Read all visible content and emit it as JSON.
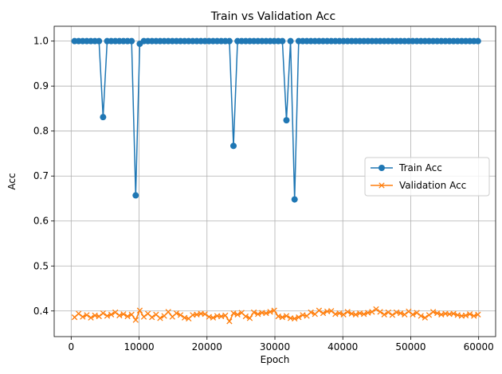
{
  "chart_data": {
    "type": "line",
    "title": "Train vs Validation Acc",
    "xlabel": "Epoch",
    "ylabel": "Acc",
    "xlim": [
      -2500,
      62500
    ],
    "ylim": [
      0.343,
      1.033
    ],
    "xticks": [
      0,
      10000,
      20000,
      30000,
      40000,
      50000,
      60000
    ],
    "yticks": [
      0.4,
      0.5,
      0.6,
      0.7,
      0.8,
      0.9,
      1.0
    ],
    "xtick_labels": [
      "0",
      "10000",
      "20000",
      "30000",
      "40000",
      "50000",
      "60000"
    ],
    "ytick_labels": [
      "0.4",
      "0.5",
      "0.6",
      "0.7",
      "0.8",
      "0.9",
      "1.0"
    ],
    "grid": true,
    "legend_position": "center-right",
    "x": [
      500,
      1100,
      1700,
      2300,
      2900,
      3500,
      4100,
      4700,
      5300,
      5900,
      6500,
      7100,
      7700,
      8300,
      8900,
      9500,
      10100,
      10700,
      11300,
      11900,
      12500,
      13100,
      13700,
      14300,
      14900,
      15500,
      16100,
      16700,
      17300,
      17900,
      18500,
      19100,
      19700,
      20300,
      20900,
      21500,
      22100,
      22700,
      23300,
      23900,
      24500,
      25100,
      25700,
      26300,
      26900,
      27500,
      28100,
      28700,
      29300,
      29900,
      30500,
      31100,
      31700,
      32300,
      32900,
      33500,
      34100,
      34700,
      35300,
      35900,
      36500,
      37100,
      37700,
      38300,
      38900,
      39500,
      40100,
      40700,
      41300,
      41900,
      42500,
      43100,
      43700,
      44300,
      44900,
      45500,
      46100,
      46700,
      47300,
      47900,
      48500,
      49100,
      49700,
      50300,
      50900,
      51500,
      52100,
      52700,
      53300,
      53900,
      54500,
      55100,
      55700,
      56300,
      56900,
      57500,
      58100,
      58700,
      59300,
      59900
    ],
    "series": [
      {
        "name": "Train Acc",
        "color": "#1f77b4",
        "marker": "circle",
        "values": [
          1.0,
          1.0,
          1.0,
          1.0,
          1.0,
          1.0,
          1.0,
          0.831,
          1.0,
          1.0,
          1.0,
          1.0,
          1.0,
          1.0,
          1.0,
          0.657,
          0.994,
          1.0,
          1.0,
          1.0,
          1.0,
          1.0,
          1.0,
          1.0,
          1.0,
          1.0,
          1.0,
          1.0,
          1.0,
          1.0,
          1.0,
          1.0,
          1.0,
          1.0,
          1.0,
          1.0,
          1.0,
          1.0,
          1.0,
          0.767,
          1.0,
          1.0,
          1.0,
          1.0,
          1.0,
          1.0,
          1.0,
          1.0,
          1.0,
          1.0,
          1.0,
          1.0,
          0.824,
          1.0,
          0.648,
          1.0,
          1.0,
          1.0,
          1.0,
          1.0,
          1.0,
          1.0,
          1.0,
          1.0,
          1.0,
          1.0,
          1.0,
          1.0,
          1.0,
          1.0,
          1.0,
          1.0,
          1.0,
          1.0,
          1.0,
          1.0,
          1.0,
          1.0,
          1.0,
          1.0,
          1.0,
          1.0,
          1.0,
          1.0,
          1.0,
          1.0,
          1.0,
          1.0,
          1.0,
          1.0,
          1.0,
          1.0,
          1.0,
          1.0,
          1.0,
          1.0,
          1.0,
          1.0,
          1.0,
          1.0
        ]
      },
      {
        "name": "Validation Acc",
        "color": "#ff7f0e",
        "marker": "x",
        "values": [
          0.386,
          0.394,
          0.387,
          0.391,
          0.385,
          0.39,
          0.388,
          0.395,
          0.389,
          0.392,
          0.397,
          0.39,
          0.393,
          0.388,
          0.392,
          0.38,
          0.401,
          0.387,
          0.394,
          0.386,
          0.392,
          0.384,
          0.389,
          0.398,
          0.387,
          0.395,
          0.391,
          0.385,
          0.383,
          0.391,
          0.392,
          0.394,
          0.393,
          0.387,
          0.385,
          0.389,
          0.388,
          0.39,
          0.377,
          0.395,
          0.392,
          0.396,
          0.388,
          0.384,
          0.397,
          0.393,
          0.396,
          0.395,
          0.398,
          0.401,
          0.388,
          0.386,
          0.389,
          0.384,
          0.383,
          0.386,
          0.391,
          0.389,
          0.397,
          0.393,
          0.401,
          0.395,
          0.399,
          0.4,
          0.393,
          0.395,
          0.392,
          0.398,
          0.394,
          0.392,
          0.395,
          0.393,
          0.396,
          0.398,
          0.404,
          0.398,
          0.392,
          0.397,
          0.391,
          0.397,
          0.395,
          0.392,
          0.399,
          0.392,
          0.396,
          0.389,
          0.385,
          0.391,
          0.398,
          0.395,
          0.392,
          0.394,
          0.393,
          0.394,
          0.391,
          0.389,
          0.39,
          0.393,
          0.389,
          0.392
        ]
      }
    ]
  }
}
